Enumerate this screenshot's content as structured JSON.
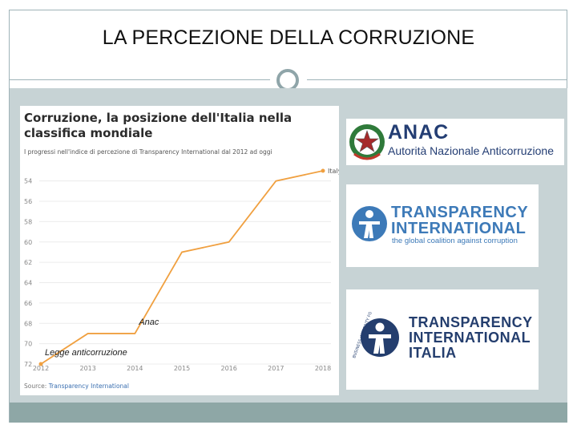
{
  "slide": {
    "title": "LA PERCEZIONE DELLA CORRUZIONE"
  },
  "colors": {
    "frame": "#9fb3b8",
    "band": "#c7d3d5",
    "bottom_band": "#8ea7a6",
    "line": "#f0a040",
    "anac_blue": "#233d73",
    "ti_blue": "#3d7ab8"
  },
  "chart_data": {
    "type": "line",
    "title": "Corruzione, la posizione dell'Italia nella classifica mondiale",
    "subtitle": "I progressi nell'indice di percezione di Transparency International dal 2012 ad oggi",
    "source_label": "Source:",
    "source_name": "Transparency International",
    "x": [
      "2012",
      "2013",
      "2014",
      "2015",
      "2016",
      "2017",
      "2018"
    ],
    "series": [
      {
        "name": "Italy",
        "values": [
          72,
          69,
          69,
          61,
          60,
          54,
          53
        ]
      }
    ],
    "y_ticks": [
      72,
      70,
      68,
      66,
      64,
      62,
      60,
      58,
      56,
      54
    ],
    "ylim": [
      72,
      53
    ],
    "y_inverted": true,
    "grid": true,
    "annotations": [
      {
        "text": "Legge anticorruzione",
        "x": "2012"
      },
      {
        "text": "Anac",
        "x": "2014"
      }
    ]
  },
  "logos": {
    "anac": {
      "name": "ANAC",
      "subtitle": "Autorità Nazionale Anticorruzione",
      "emblem": "italian-republic-emblem"
    },
    "ti": {
      "line1": "TRANSPARENCY",
      "line2": "INTERNATIONAL",
      "tagline": "the global coalition against corruption",
      "icon": "ti-figure-icon"
    },
    "ti_italia": {
      "line1": "TRANSPARENCY",
      "line2": "INTERNATIONAL",
      "line3": "ITALIA",
      "badge": "BUSINESS INTEGRITY FORUM",
      "icon": "ti-figure-icon"
    }
  }
}
